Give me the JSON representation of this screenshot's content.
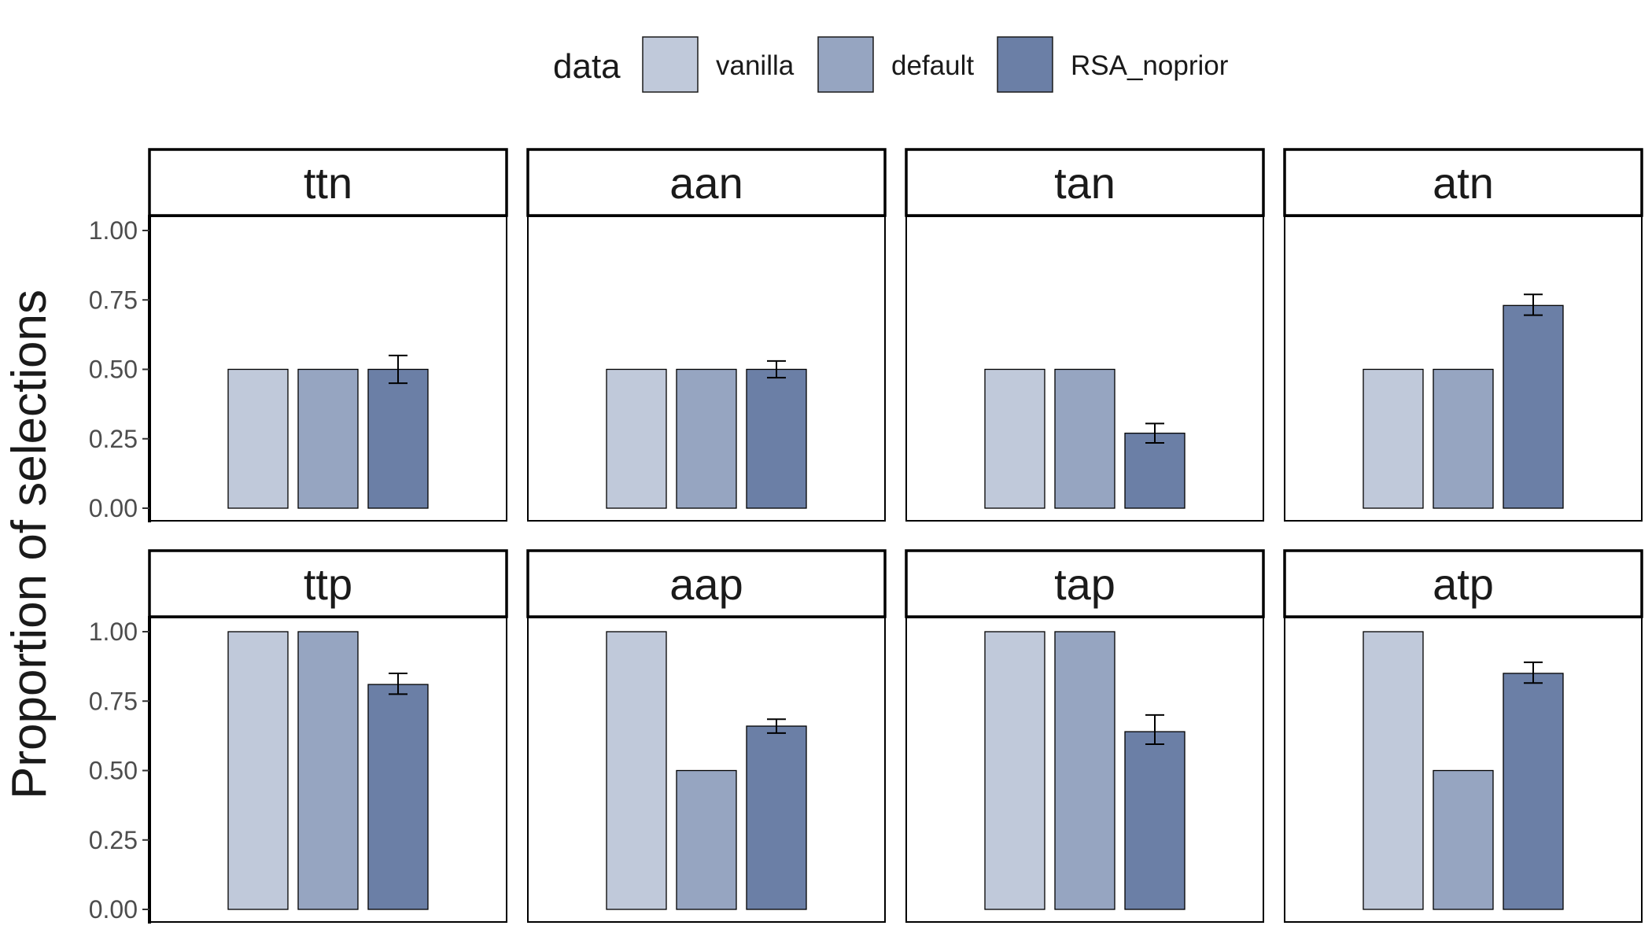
{
  "chart_data": {
    "type": "bar",
    "facet_layout": "2x4",
    "ylabel": "Proportion of selections",
    "xlabel": "",
    "ylim": [
      0,
      1
    ],
    "y_ticks": [
      "0.00",
      "0.25",
      "0.50",
      "0.75",
      "1.00"
    ],
    "grid": false,
    "legend": {
      "title": "data",
      "placement": "top",
      "entries": [
        "vanilla",
        "default",
        "RSA_noprior"
      ],
      "colors": [
        "#c0c9da",
        "#96a5c1",
        "#6b7fa6"
      ]
    },
    "series_names": [
      "vanilla",
      "default",
      "RSA_noprior"
    ],
    "panels": [
      {
        "label": "ttn",
        "values": [
          0.5,
          0.5,
          0.5
        ],
        "error": [
          null,
          null,
          [
            0.45,
            0.55
          ]
        ]
      },
      {
        "label": "aan",
        "values": [
          0.5,
          0.5,
          0.5
        ],
        "error": [
          null,
          null,
          [
            0.47,
            0.53
          ]
        ]
      },
      {
        "label": "tan",
        "values": [
          0.5,
          0.5,
          0.27
        ],
        "error": [
          null,
          null,
          [
            0.235,
            0.305
          ]
        ]
      },
      {
        "label": "atn",
        "values": [
          0.5,
          0.5,
          0.73
        ],
        "error": [
          null,
          null,
          [
            0.695,
            0.77
          ]
        ]
      },
      {
        "label": "ttp",
        "values": [
          1.0,
          1.0,
          0.81
        ],
        "error": [
          null,
          null,
          [
            0.775,
            0.85
          ]
        ]
      },
      {
        "label": "aap",
        "values": [
          1.0,
          0.5,
          0.66
        ],
        "error": [
          null,
          null,
          [
            0.635,
            0.685
          ]
        ]
      },
      {
        "label": "tap",
        "values": [
          1.0,
          1.0,
          0.64
        ],
        "error": [
          null,
          null,
          [
            0.595,
            0.7
          ]
        ]
      },
      {
        "label": "atp",
        "values": [
          1.0,
          0.5,
          0.85
        ],
        "error": [
          null,
          null,
          [
            0.815,
            0.89
          ]
        ]
      }
    ]
  }
}
